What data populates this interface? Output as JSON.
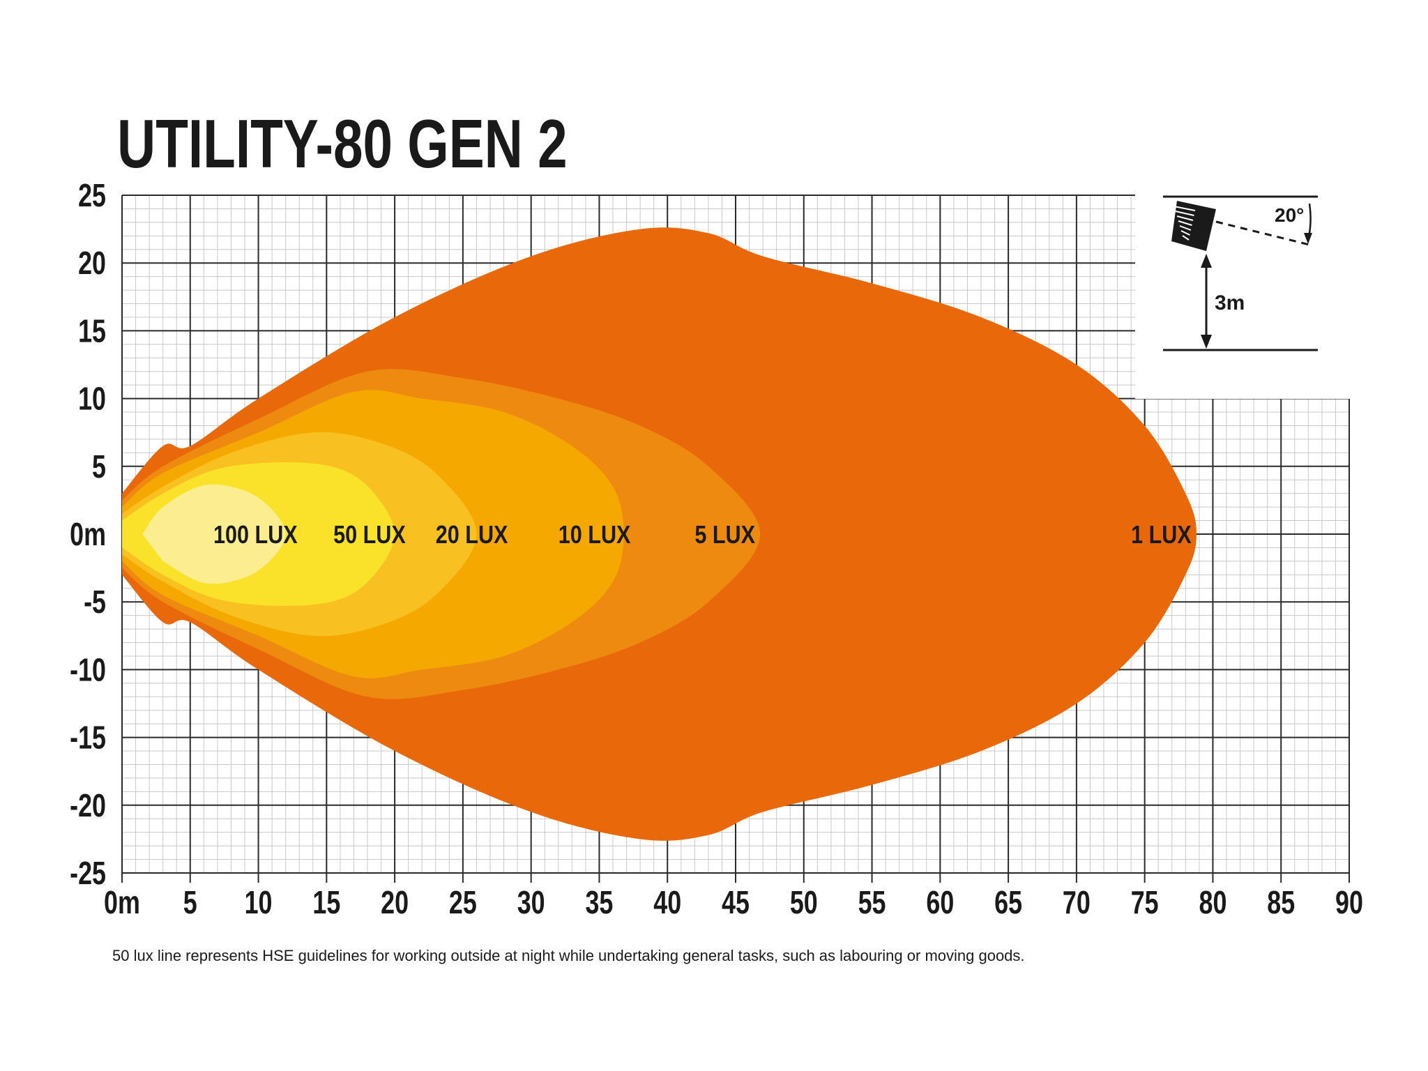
{
  "chart_data": {
    "type": "area",
    "title": "UTILITY-80 GEN 2",
    "footnote": "50 lux line represents HSE guidelines for working outside at night while undertaking general tasks, such as labouring or moving goods.",
    "xlim": [
      0,
      90
    ],
    "ylim": [
      -25,
      25
    ],
    "x_ticks": [
      "0m",
      "5",
      "10",
      "15",
      "20",
      "25",
      "30",
      "35",
      "40",
      "45",
      "50",
      "55",
      "60",
      "65",
      "70",
      "75",
      "80",
      "85",
      "90"
    ],
    "y_ticks": [
      "25",
      "20",
      "15",
      "10",
      "5",
      "0m",
      "-5",
      "-10",
      "-15",
      "-20",
      "-25"
    ],
    "grid": true,
    "series": [
      {
        "name": "1 LUX",
        "color": "#e8680a",
        "label_x": 74,
        "points": [
          [
            0,
            3
          ],
          [
            3,
            6.5
          ],
          [
            5,
            6.5
          ],
          [
            10,
            10
          ],
          [
            20,
            16
          ],
          [
            30,
            20.5
          ],
          [
            38,
            22.5
          ],
          [
            43,
            22.2
          ],
          [
            47,
            20.5
          ],
          [
            55,
            18.5
          ],
          [
            63,
            16
          ],
          [
            70,
            12.5
          ],
          [
            75,
            8
          ],
          [
            78,
            3
          ],
          [
            78.8,
            0
          ]
        ]
      },
      {
        "name": "5 LUX",
        "color": "#ee8a10",
        "label_x": 42,
        "points": [
          [
            0,
            2.5
          ],
          [
            3,
            5
          ],
          [
            10,
            8.5
          ],
          [
            18,
            12
          ],
          [
            25,
            11.5
          ],
          [
            32,
            10
          ],
          [
            38,
            8
          ],
          [
            43,
            5
          ],
          [
            46.8,
            0
          ]
        ]
      },
      {
        "name": "10 LUX",
        "color": "#f5a800",
        "label_x": 32,
        "points": [
          [
            0,
            2
          ],
          [
            3,
            4.5
          ],
          [
            10,
            7.5
          ],
          [
            17,
            10.5
          ],
          [
            22,
            10
          ],
          [
            28,
            9
          ],
          [
            33,
            6.5
          ],
          [
            36,
            3.5
          ],
          [
            36.8,
            0
          ]
        ]
      },
      {
        "name": "20 LUX",
        "color": "#f8c020",
        "label_x": 23,
        "points": [
          [
            0,
            1.5
          ],
          [
            3,
            3.5
          ],
          [
            8,
            6
          ],
          [
            14,
            7.5
          ],
          [
            19,
            6.7
          ],
          [
            23,
            4.5
          ],
          [
            26,
            0
          ]
        ]
      },
      {
        "name": "50 LUX",
        "color": "#fbe22a",
        "label_x": 15.5,
        "points": [
          [
            0,
            1
          ],
          [
            3,
            3
          ],
          [
            7,
            4.8
          ],
          [
            12,
            5.3
          ],
          [
            16,
            4.8
          ],
          [
            18.5,
            3
          ],
          [
            20,
            0
          ]
        ]
      },
      {
        "name": "100 LUX",
        "color": "#fcee90",
        "label_x": 6.7,
        "points": [
          [
            1.5,
            0
          ],
          [
            3,
            2
          ],
          [
            6,
            3.6
          ],
          [
            9,
            3.2
          ],
          [
            11,
            1.8
          ],
          [
            12,
            0
          ]
        ]
      }
    ]
  },
  "inset": {
    "angle_label": "20°",
    "height_label": "3m"
  }
}
